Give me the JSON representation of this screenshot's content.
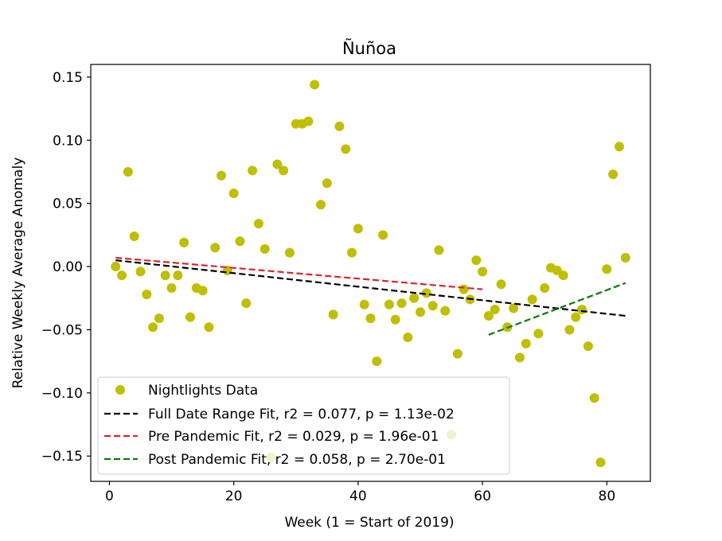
{
  "chart_data": {
    "type": "scatter",
    "title": "Ñuñoa",
    "xlabel": "Week (1 = Start of 2019)",
    "ylabel": "Relative Weekly Average Anomaly",
    "xlim": [
      -3,
      87
    ],
    "ylim": [
      -0.17,
      0.16
    ],
    "xticks": [
      0,
      20,
      40,
      60,
      80
    ],
    "xtick_labels": [
      "0",
      "20",
      "40",
      "60",
      "80"
    ],
    "yticks": [
      0.15,
      0.1,
      0.05,
      0.0,
      -0.05,
      -0.1,
      -0.15
    ],
    "ytick_labels": [
      "0.15",
      "0.10",
      "0.05",
      "0.00",
      "−0.05",
      "−0.10",
      "−0.15"
    ],
    "grid": false,
    "legend_position": "lower-left",
    "colors": {
      "points": "#bfbf00",
      "full_fit": "#000000",
      "pre_fit": "#d62728",
      "post_fit": "#0a7a0a"
    },
    "series": [
      {
        "name": "Nightlights Data",
        "kind": "scatter",
        "x": [
          1,
          2,
          3,
          4,
          5,
          6,
          7,
          8,
          9,
          10,
          11,
          12,
          13,
          14,
          15,
          16,
          17,
          18,
          19,
          20,
          21,
          22,
          23,
          24,
          25,
          26,
          27,
          28,
          29,
          30,
          31,
          32,
          33,
          34,
          35,
          36,
          37,
          38,
          39,
          40,
          41,
          42,
          43,
          44,
          45,
          46,
          47,
          48,
          49,
          50,
          51,
          52,
          53,
          54,
          55,
          56,
          57,
          58,
          59,
          60,
          61,
          62,
          63,
          64,
          65,
          66,
          67,
          68,
          69,
          70,
          71,
          72,
          73,
          74,
          75,
          76,
          77,
          78,
          79,
          80,
          81,
          82,
          83
        ],
        "y": [
          0.0,
          -0.007,
          0.075,
          0.024,
          -0.004,
          -0.022,
          -0.048,
          -0.041,
          -0.007,
          -0.017,
          -0.007,
          0.019,
          -0.04,
          -0.017,
          -0.019,
          -0.048,
          0.015,
          0.072,
          -0.003,
          0.058,
          0.02,
          -0.029,
          0.076,
          0.034,
          0.014,
          -0.151,
          0.081,
          0.076,
          0.011,
          0.113,
          0.113,
          0.115,
          0.144,
          0.049,
          0.066,
          -0.038,
          0.111,
          0.093,
          0.011,
          0.03,
          -0.03,
          -0.041,
          -0.075,
          0.025,
          -0.03,
          -0.042,
          -0.029,
          -0.056,
          -0.025,
          -0.036,
          -0.021,
          -0.031,
          0.013,
          -0.035,
          -0.133,
          -0.069,
          -0.018,
          -0.026,
          0.005,
          -0.004,
          -0.039,
          -0.034,
          -0.014,
          -0.048,
          -0.033,
          -0.072,
          -0.061,
          -0.026,
          -0.053,
          -0.017,
          -0.001,
          -0.003,
          -0.007,
          -0.05,
          -0.04,
          -0.034,
          -0.063,
          -0.104,
          -0.155,
          -0.002,
          0.073,
          0.095,
          0.007
        ]
      },
      {
        "name": "Full Date Range Fit, r2 = 0.077, p = 1.13e-02",
        "kind": "line",
        "x": [
          1,
          83
        ],
        "y": [
          0.005,
          -0.039
        ]
      },
      {
        "name": "Pre Pandemic Fit, r2 = 0.029, p = 1.96e-01",
        "kind": "line",
        "x": [
          1,
          60
        ],
        "y": [
          0.007,
          -0.018
        ]
      },
      {
        "name": "Post Pandemic Fit, r2 = 0.058, p = 2.70e-01",
        "kind": "line",
        "x": [
          61,
          83
        ],
        "y": [
          -0.054,
          -0.013
        ]
      }
    ]
  }
}
